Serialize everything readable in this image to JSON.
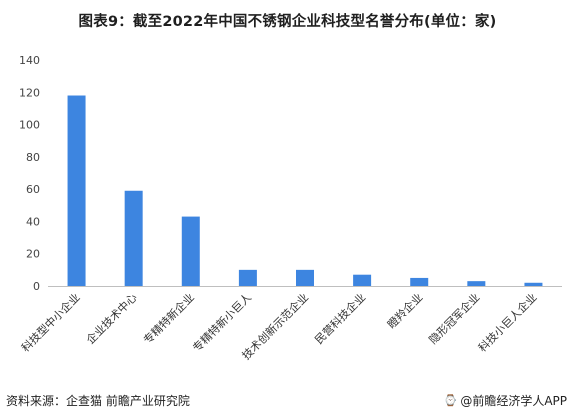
{
  "title": "图表9：截至2022年中国不锈钢企业科技型名誉分布(单位：家)",
  "chart_data": {
    "type": "bar",
    "categories": [
      "科技型中小企业",
      "企业技术中心",
      "专精特新企业",
      "专精特新小巨人",
      "技术创新示范企业",
      "民营科技企业",
      "瞪羚企业",
      "隐形冠军企业",
      "科技小巨人企业"
    ],
    "values": [
      118,
      59,
      43,
      10,
      10,
      7,
      5,
      3,
      2
    ],
    "ylim": [
      0,
      140
    ],
    "yticks": [
      0,
      20,
      40,
      60,
      80,
      100,
      120,
      140
    ],
    "bar_color": "#3d85e0",
    "grid": false
  },
  "footer": {
    "source": "资料来源：企查猫 前瞻产业研究院",
    "brand": "@前瞻经济学人APP"
  },
  "icons": {
    "brand": "watch-icon"
  }
}
